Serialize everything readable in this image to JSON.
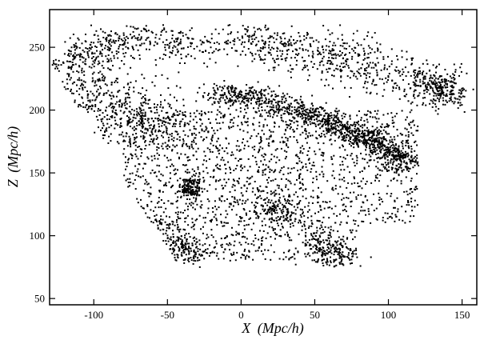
{
  "chart_data": {
    "type": "scatter",
    "title": "",
    "xlabel": {
      "var": "X",
      "unit": "(Mpc/h)"
    },
    "ylabel": {
      "var": "Z",
      "unit": "(Mpc/h)"
    },
    "xlim": [
      -130,
      160
    ],
    "ylim": [
      45,
      280
    ],
    "xticks": [
      -100,
      -50,
      0,
      50,
      100,
      150
    ],
    "yticks": [
      50,
      100,
      150,
      200,
      250
    ],
    "grid": false,
    "legend": "none",
    "marker_color": "#000000",
    "regions": [
      {
        "name": "main-filament",
        "x": [
          -20,
          10,
          40,
          60,
          80,
          100,
          112
        ],
        "z": [
          212,
          208,
          200,
          190,
          180,
          168,
          158
        ],
        "spread": 5,
        "count": 1100
      },
      {
        "name": "upper-left-arc",
        "x": [
          -125,
          -105,
          -80,
          -55,
          -30
        ],
        "z": [
          232,
          247,
          255,
          258,
          248
        ],
        "spread": 9,
        "count": 400
      },
      {
        "name": "left-wing",
        "x": [
          -120,
          -95,
          -70,
          -50
        ],
        "z": [
          225,
          205,
          195,
          185
        ],
        "spread": 14,
        "count": 500
      },
      {
        "name": "top-right-band",
        "x": [
          -10,
          20,
          50,
          80,
          110,
          150
        ],
        "z": [
          258,
          250,
          245,
          238,
          225,
          218
        ],
        "spread": 10,
        "count": 650
      },
      {
        "name": "right-knot",
        "x": [
          125,
          135,
          145
        ],
        "z": [
          225,
          218,
          210
        ],
        "spread": 7,
        "count": 200
      },
      {
        "name": "central-body",
        "x": [
          -80,
          120
        ],
        "z": [
          110,
          200
        ],
        "uniform": true,
        "count": 1500
      },
      {
        "name": "left-clump",
        "x": [
          -40,
          -28
        ],
        "z": [
          132,
          145
        ],
        "uniform": true,
        "count": 140
      },
      {
        "name": "lower-left-tail",
        "x": [
          -55,
          -40,
          -30
        ],
        "z": [
          110,
          90,
          85
        ],
        "spread": 6,
        "count": 160
      },
      {
        "name": "lower-center-cluster",
        "x": [
          15,
          25,
          35
        ],
        "z": [
          125,
          120,
          115
        ],
        "spread": 6,
        "count": 150
      },
      {
        "name": "lower-right-tail",
        "x": [
          50,
          60,
          70
        ],
        "z": [
          100,
          85,
          80
        ],
        "spread": 7,
        "count": 200
      },
      {
        "name": "bottom-scatter",
        "x": [
          -60,
          80
        ],
        "z": [
          80,
          110
        ],
        "uniform": true,
        "count": 300
      }
    ]
  }
}
